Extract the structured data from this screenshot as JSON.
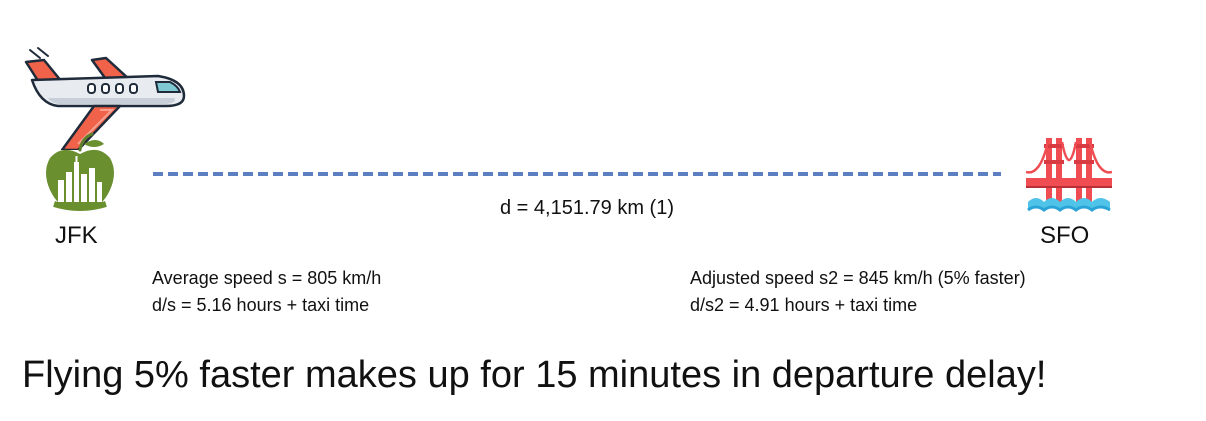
{
  "origin": {
    "code": "JFK",
    "icon": "big-apple-skyline-icon",
    "icon_color": "#6a8f2f"
  },
  "destination": {
    "code": "SFO",
    "icon": "golden-gate-bridge-icon",
    "icon_color": "#ef4d52"
  },
  "airplane": {
    "icon": "airplane-icon",
    "wing_color": "#f0624a",
    "body_color": "#e8ebf0"
  },
  "route": {
    "style": "dashed",
    "color": "#5b7fc0",
    "distance_label": "d = 4,151.79 km (1)"
  },
  "baseline": {
    "speed_line": "Average speed s = 805 km/h",
    "time_line": "d/s = 5.16 hours + taxi time"
  },
  "adjusted": {
    "speed_line": "Adjusted speed s2 = 845 km/h (5% faster)",
    "time_line": "d/s2 = 4.91 hours + taxi time"
  },
  "headline": "Flying 5% faster makes up for 15 minutes in departure delay!"
}
